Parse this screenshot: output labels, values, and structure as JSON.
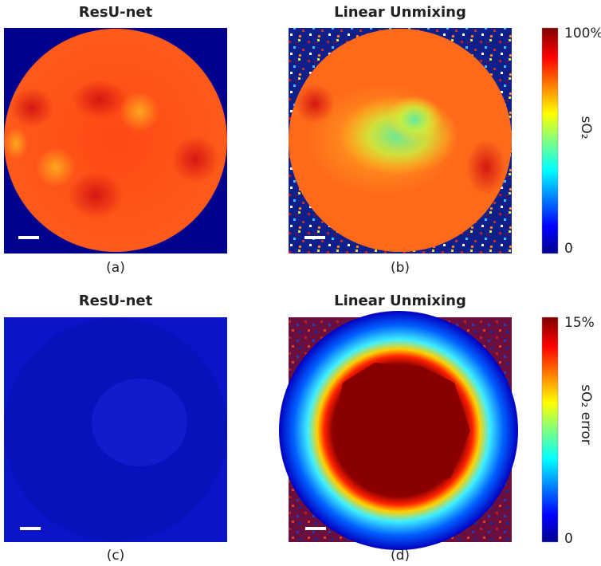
{
  "figure": {
    "panels": [
      {
        "title": "ResU-net",
        "caption": "(a)"
      },
      {
        "title": "Linear Unmixing",
        "caption": "(b)"
      },
      {
        "title": "ResU-net",
        "caption": "(c)"
      },
      {
        "title": "Linear Unmixing",
        "caption": "(d)"
      }
    ],
    "colorbars": [
      {
        "label": "sO₂",
        "max_label": "100%",
        "min_label": "0"
      },
      {
        "label": "sO₂ error",
        "max_label": "15%",
        "min_label": "0"
      }
    ]
  }
}
